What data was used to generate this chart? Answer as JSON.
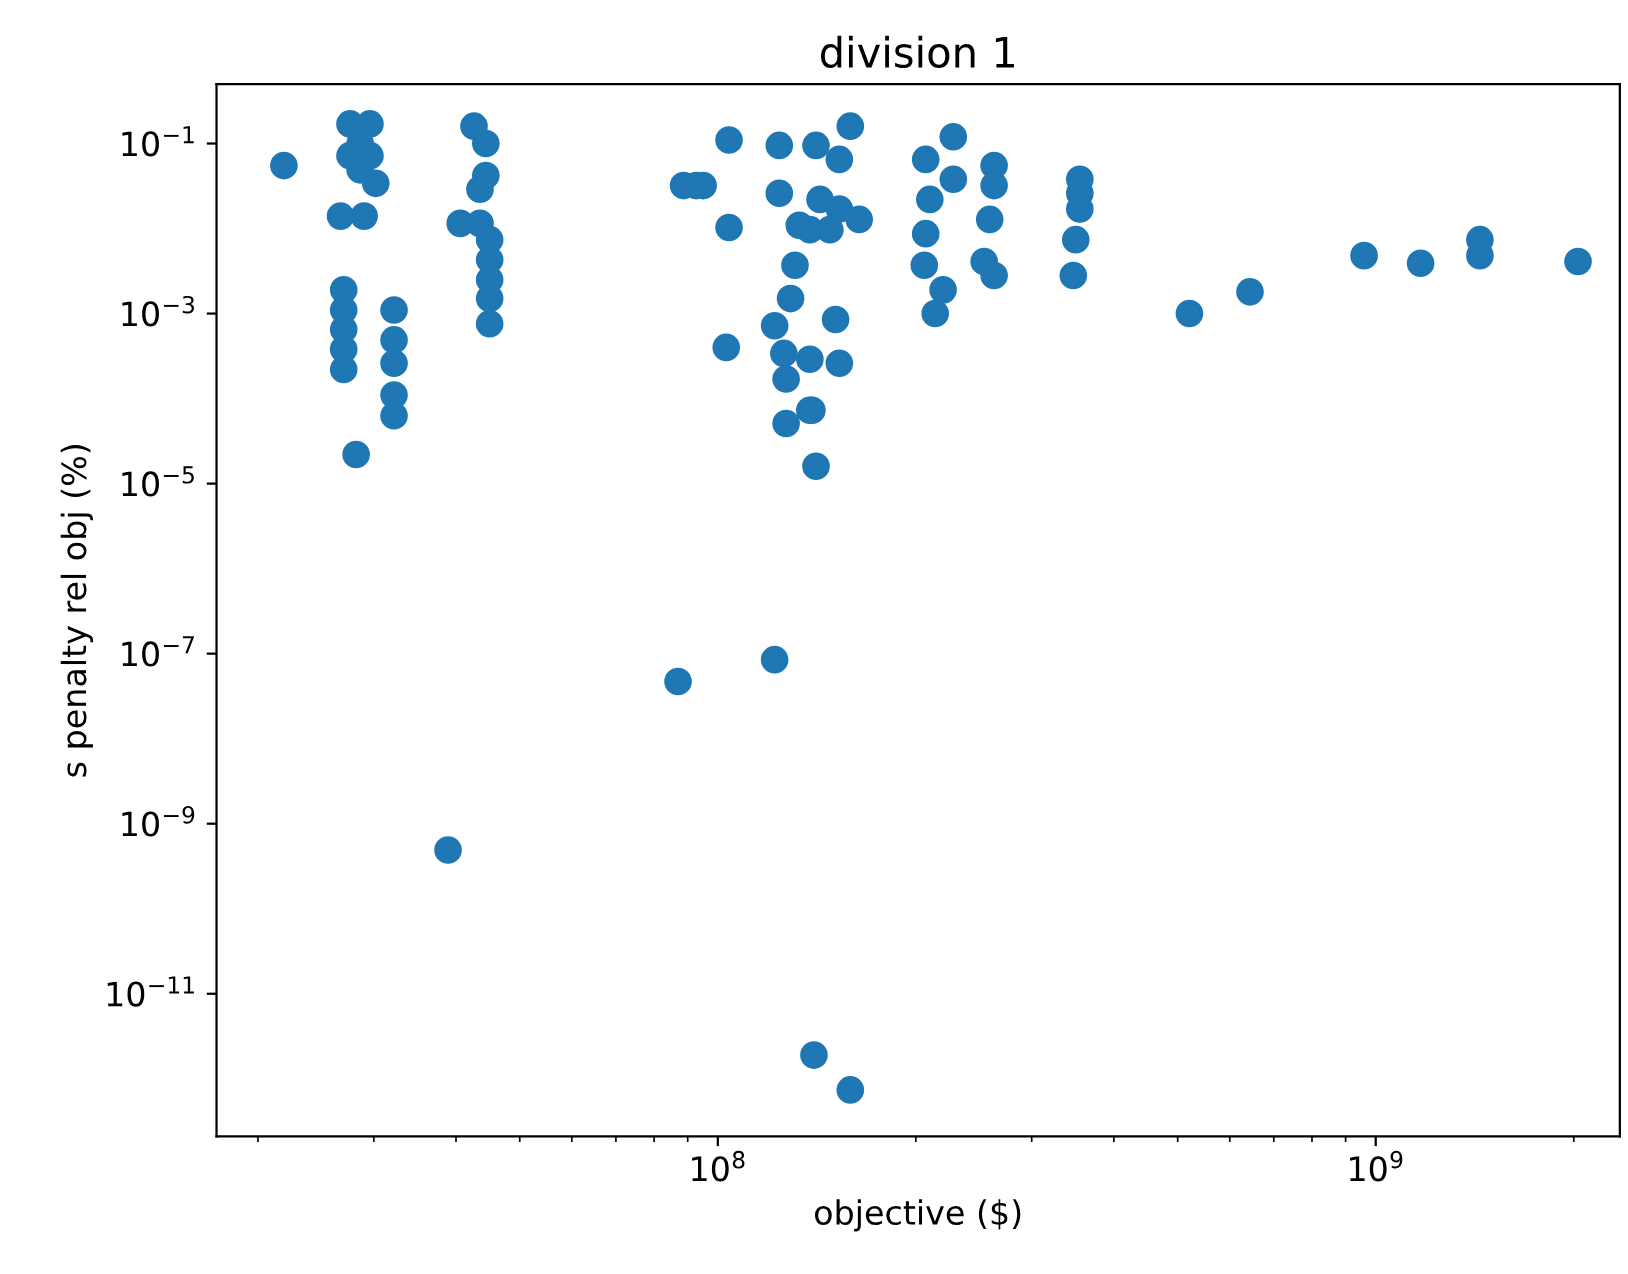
{
  "chart_data": {
    "type": "scatter",
    "title": "division 1",
    "xlabel": "objective ($)",
    "ylabel": "s penalty rel obj (%)",
    "log": "xy",
    "grid": false,
    "legend": false,
    "marker": "circle",
    "xlim": [
      17300000.0,
      2350000000.0
    ],
    "ylim": [
      2.1e-13,
      0.5
    ],
    "xticks": [
      {
        "value": 100000000.0,
        "label": "10$^{8}$"
      },
      {
        "value": 1000000000.0,
        "label": "10$^{9}$"
      }
    ],
    "yticks": [
      {
        "value": 1e-11,
        "label": "10$^{−11}$"
      },
      {
        "value": 1e-09,
        "label": "10$^{−9}$"
      },
      {
        "value": 1e-07,
        "label": "10$^{−7}$"
      },
      {
        "value": 1e-05,
        "label": "10$^{−5}$"
      },
      {
        "value": 0.001,
        "label": "10$^{−3}$"
      },
      {
        "value": 0.1,
        "label": "10$^{−1}$"
      }
    ],
    "series": [
      {
        "color": "#1f77b4",
        "x": [
          21900000.0,
          27600000.0,
          29600000.0,
          28600000.0,
          27600000.0,
          29600000.0,
          28600000.0,
          30200000.0,
          26700000.0,
          29000000.0,
          27000000.0,
          27000000.0,
          27000000.0,
          27000000.0,
          27000000.0,
          28200000.0,
          32200000.0,
          32200000.0,
          32200000.0,
          32200000.0,
          32200000.0,
          42600000.0,
          44400000.0,
          44400000.0,
          43500000.0,
          40600000.0,
          43500000.0,
          45000000.0,
          45000000.0,
          45000000.0,
          45000000.0,
          45000000.0,
          38900000.0,
          88700000.0,
          95000000.0,
          92700000.0,
          87000000.0,
          104000000.0,
          104000000.0,
          103000000.0,
          124000000.0,
          141000000.0,
          159000000.0,
          153000000.0,
          124000000.0,
          133000000.0,
          143000000.0,
          153000000.0,
          164000000.0,
          138000000.0,
          148000000.0,
          131000000.0,
          129000000.0,
          122000000.0,
          126000000.0,
          127000000.0,
          138000000.0,
          127000000.0,
          141000000.0,
          151000000.0,
          153000000.0,
          138000000.0,
          139000000.0,
          122000000.0,
          140000000.0,
          159000000.0,
          228000000.0,
          207000000.0,
          228000000.0,
          210000000.0,
          207000000.0,
          206000000.0,
          220000000.0,
          214000000.0,
          263000000.0,
          263000000.0,
          259000000.0,
          254000000.0,
          263000000.0,
          355000000.0,
          355000000.0,
          350000000.0,
          347000000.0,
          355000000.0,
          521000000.0,
          644000000.0,
          960000000.0,
          1170000000.0,
          1440000000.0,
          1440000000.0,
          2030000000.0
        ],
        "values": [
          0.055,
          0.17,
          0.17,
          0.1,
          0.072,
          0.072,
          0.049,
          0.034,
          0.014,
          0.014,
          0.0019,
          0.0011,
          0.00065,
          0.00038,
          0.00022,
          2.2e-05,
          0.0011,
          0.00049,
          0.00026,
          0.00011,
          6.3e-05,
          0.16,
          0.1,
          0.042,
          0.029,
          0.0115,
          0.0115,
          0.0074,
          0.0043,
          0.0025,
          0.0015,
          0.00076,
          4.9e-10,
          0.032,
          0.032,
          0.032,
          4.7e-08,
          0.11,
          0.0103,
          0.0004,
          0.095,
          0.095,
          0.16,
          0.065,
          0.026,
          0.0109,
          0.022,
          0.017,
          0.0128,
          0.0097,
          0.0097,
          0.0037,
          0.0015,
          0.00072,
          0.00034,
          0.00017,
          7.3e-05,
          5.1e-05,
          1.6e-05,
          0.00085,
          0.00026,
          0.00029,
          7.3e-05,
          8.5e-08,
          1.9e-12,
          7.4e-13,
          0.12,
          0.065,
          0.038,
          0.022,
          0.0087,
          0.0037,
          0.0019,
          0.001,
          0.055,
          0.032,
          0.0128,
          0.0041,
          0.0028,
          0.038,
          0.026,
          0.0074,
          0.0028,
          0.017,
          0.001,
          0.0018,
          0.0048,
          0.0039,
          0.0074,
          0.0048,
          0.0041
        ]
      }
    ]
  }
}
